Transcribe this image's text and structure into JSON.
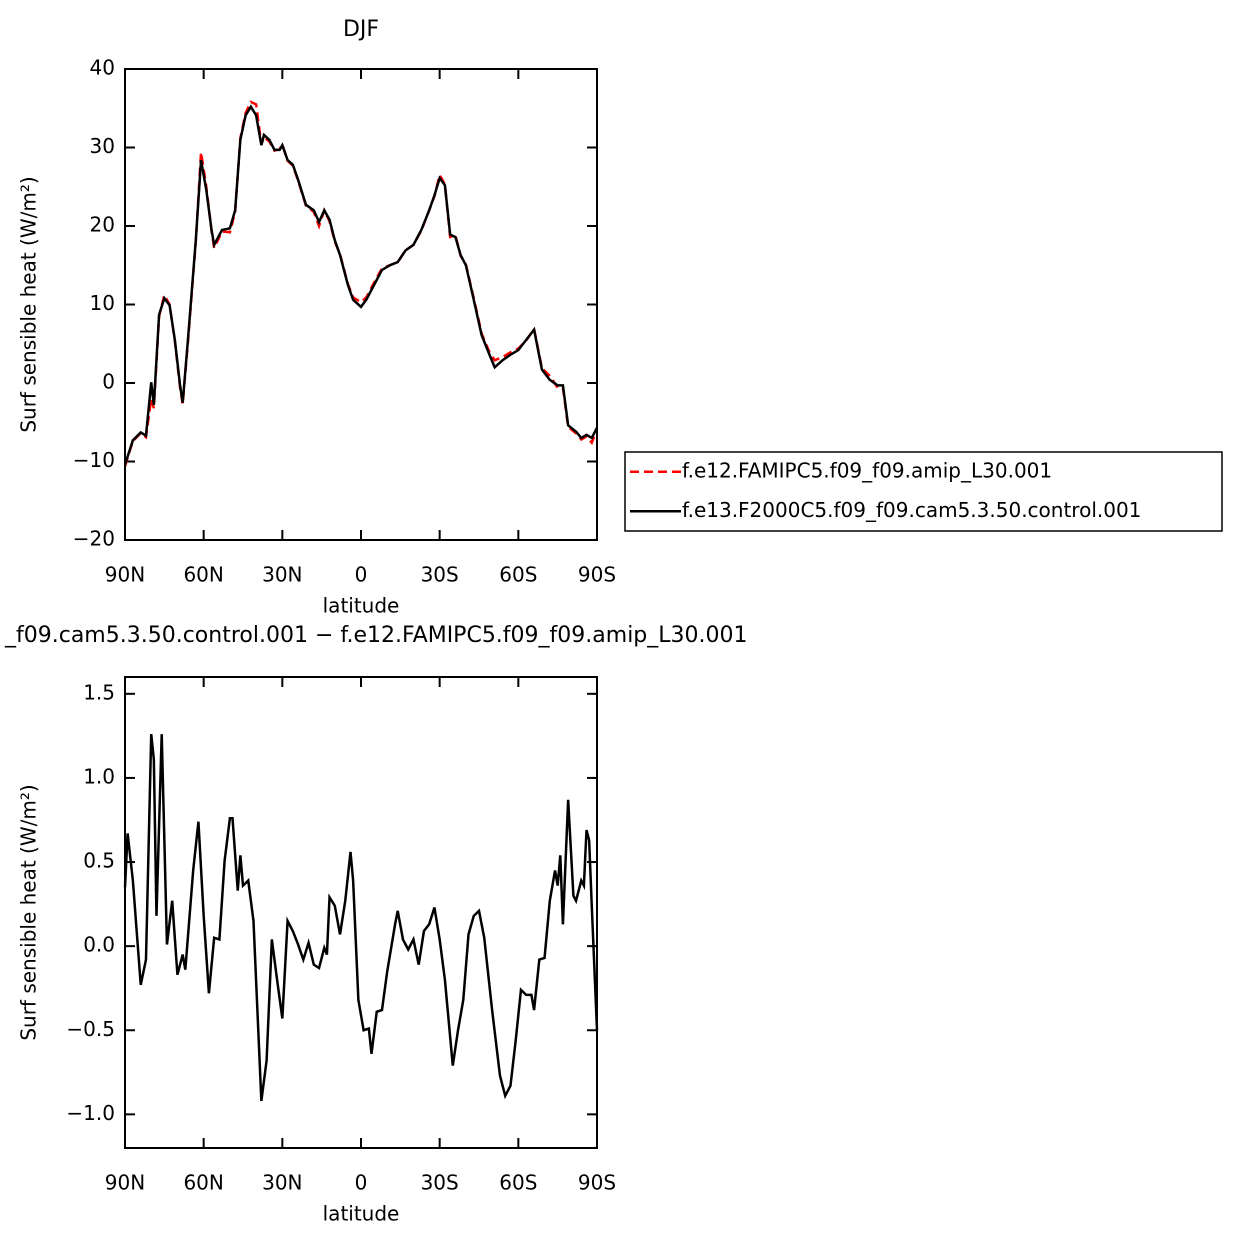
{
  "chart_data": [
    {
      "type": "line",
      "title": "DJF",
      "xlabel": "latitude",
      "ylabel": "Surf sensible heat (W/m²)",
      "x": [
        90,
        87,
        84,
        82,
        80,
        79,
        77,
        75,
        73,
        71,
        69,
        68,
        66,
        63,
        61,
        59,
        57,
        56,
        53,
        50,
        48,
        46,
        44,
        42,
        40,
        38,
        37,
        35,
        33,
        31,
        30,
        28,
        26,
        24,
        21,
        18,
        16,
        14,
        12,
        10,
        8,
        5,
        3,
        0,
        -2,
        -5,
        -8,
        -11,
        -14,
        -17,
        -20,
        -23,
        -26,
        -28,
        -30,
        -32,
        -34,
        -36,
        -38,
        -40,
        -43,
        -46,
        -49,
        -51,
        -54,
        -57,
        -60,
        -63,
        -66,
        -69,
        -72,
        -75,
        -77,
        -79,
        -82,
        -84,
        -86,
        -88,
        -90
      ],
      "series": [
        {
          "name": "f.e12.FAMIPC5.f09_f09.amip_L30.001",
          "color": "#ff0000",
          "linestyle": "dashed",
          "values": [
            -10.6,
            -7.4,
            -6.4,
            -6.9,
            -2.0,
            -3.2,
            8.5,
            11.2,
            10.0,
            5.4,
            -0.6,
            -2.7,
            5.2,
            18.0,
            29.4,
            25.0,
            19.4,
            17.2,
            19.3,
            19.2,
            21.8,
            31.2,
            34.4,
            35.8,
            35.5,
            30.4,
            31.3,
            30.8,
            29.6,
            29.8,
            30.4,
            28.3,
            27.7,
            25.8,
            22.6,
            21.8,
            20.0,
            22.0,
            20.6,
            18.0,
            16.4,
            12.6,
            10.9,
            10.3,
            10.9,
            12.8,
            14.6,
            15.0,
            15.4,
            16.9,
            17.6,
            19.4,
            22.0,
            23.8,
            26.5,
            25.3,
            18.6,
            18.8,
            16.2,
            15.1,
            10.8,
            6.3,
            3.9,
            2.9,
            3.3,
            3.9,
            4.4,
            5.4,
            6.9,
            1.9,
            0.9,
            -0.6,
            -0.6,
            -5.6,
            -6.4,
            -7.2,
            -6.8,
            -7.6,
            -5.9
          ]
        },
        {
          "name": "f.e13.F2000C5.f09_f09.cam5.3.50.control.001",
          "color": "#000000",
          "linestyle": "solid",
          "values": [
            -10.4,
            -7.3,
            -6.3,
            -6.7,
            0.1,
            -2.8,
            8.7,
            10.8,
            9.9,
            5.5,
            -0.3,
            -2.5,
            5.5,
            18.2,
            28.4,
            24.6,
            19.5,
            17.6,
            19.5,
            19.7,
            22.0,
            31.0,
            34.1,
            35.2,
            34.1,
            30.3,
            31.6,
            31.0,
            29.7,
            29.7,
            30.3,
            28.4,
            27.8,
            25.9,
            22.7,
            22.0,
            20.5,
            22.0,
            20.8,
            18.2,
            16.3,
            12.5,
            10.6,
            9.7,
            10.6,
            12.5,
            14.4,
            15.0,
            15.4,
            16.9,
            17.6,
            19.5,
            22.0,
            23.9,
            26.1,
            25.2,
            18.9,
            18.6,
            16.3,
            15.0,
            10.6,
            6.1,
            3.6,
            2.0,
            2.9,
            3.6,
            4.2,
            5.5,
            6.8,
            1.7,
            0.4,
            -0.3,
            -0.3,
            -5.4,
            -6.2,
            -7.0,
            -6.6,
            -7.0,
            -5.7
          ]
        }
      ],
      "xlim": [
        90,
        -90
      ],
      "xticks": [
        {
          "value": 90,
          "label": "90N"
        },
        {
          "value": 60,
          "label": "60N"
        },
        {
          "value": 30,
          "label": "30N"
        },
        0,
        {
          "value": -30,
          "label": "30S"
        },
        {
          "value": -60,
          "label": "60S"
        },
        {
          "value": -90,
          "label": "90S"
        }
      ],
      "ylim": [
        -20,
        40
      ],
      "yticks": [
        {
          "value": -20,
          "label": "−20"
        },
        {
          "value": -10,
          "label": "−10"
        },
        0,
        10,
        20,
        30,
        40
      ],
      "legend": "right"
    },
    {
      "type": "line",
      "title": "_f09.cam5.3.50.control.001 − f.e12.FAMIPC5.f09_f09.amip_L30.001",
      "xlabel": "latitude",
      "ylabel": "Surf sensible heat (W/m²)",
      "x": [
        90,
        89,
        87,
        84,
        82,
        80,
        79,
        78,
        76,
        74,
        72,
        70,
        68,
        67,
        64,
        62,
        60,
        58,
        56,
        54,
        52,
        50,
        49,
        47,
        46,
        45,
        43,
        41,
        38,
        36,
        34,
        32,
        30,
        28,
        26,
        24,
        22,
        20,
        18,
        16,
        14,
        13,
        12,
        10,
        8,
        6,
        4,
        3,
        1,
        -1,
        -3,
        -4,
        -6,
        -8,
        -10,
        -13,
        -14,
        -16,
        -18,
        -20,
        -22,
        -24,
        -26,
        -28,
        -30,
        -32,
        -35,
        -37,
        -39,
        -41,
        -43,
        -45,
        -47,
        -50,
        -53,
        -55,
        -57,
        -59,
        -61,
        -63,
        -65,
        -66,
        -68,
        -70,
        -72,
        -74,
        -75,
        -76,
        -77,
        -79,
        -81,
        -82,
        -84,
        -85,
        -86,
        -87,
        -88,
        -90
      ],
      "series": [
        {
          "color": "#000000",
          "linestyle": "solid",
          "values": [
            0.35,
            0.67,
            0.39,
            -0.23,
            -0.08,
            1.26,
            1.11,
            0.18,
            1.26,
            0.01,
            0.27,
            -0.17,
            -0.05,
            -0.14,
            0.45,
            0.74,
            0.18,
            -0.28,
            0.05,
            0.04,
            0.51,
            0.76,
            0.76,
            0.33,
            0.54,
            0.36,
            0.39,
            0.15,
            -0.92,
            -0.68,
            0.04,
            -0.2,
            -0.43,
            0.15,
            0.09,
            0.01,
            -0.08,
            0.02,
            -0.11,
            -0.13,
            -0.01,
            -0.05,
            0.29,
            0.24,
            0.07,
            0.27,
            0.56,
            0.39,
            -0.32,
            -0.5,
            -0.49,
            -0.64,
            -0.39,
            -0.38,
            -0.15,
            0.13,
            0.21,
            0.04,
            -0.02,
            0.04,
            -0.11,
            0.09,
            0.13,
            0.23,
            0.04,
            -0.2,
            -0.71,
            -0.5,
            -0.32,
            0.07,
            0.18,
            0.21,
            0.05,
            -0.38,
            -0.77,
            -0.89,
            -0.83,
            -0.56,
            -0.26,
            -0.29,
            -0.29,
            -0.38,
            -0.08,
            -0.07,
            0.27,
            0.45,
            0.36,
            0.54,
            0.13,
            0.87,
            0.3,
            0.27,
            0.39,
            0.36,
            0.69,
            0.63,
            0.24,
            -0.5
          ]
        }
      ],
      "xlim": [
        90,
        -90
      ],
      "xticks": [
        {
          "value": 90,
          "label": "90N"
        },
        {
          "value": 60,
          "label": "60N"
        },
        {
          "value": 30,
          "label": "30N"
        },
        0,
        {
          "value": -30,
          "label": "30S"
        },
        {
          "value": -60,
          "label": "60S"
        },
        {
          "value": -90,
          "label": "90S"
        }
      ],
      "ylim": [
        -1.2,
        1.6
      ],
      "yticks": [
        {
          "value": -1.0,
          "label": "−1.0"
        },
        {
          "value": -0.5,
          "label": "−0.5"
        },
        {
          "value": 0.0,
          "label": "0.0"
        },
        0.5,
        {
          "value": 1.0,
          "label": "1.0"
        },
        1.5
      ]
    }
  ]
}
